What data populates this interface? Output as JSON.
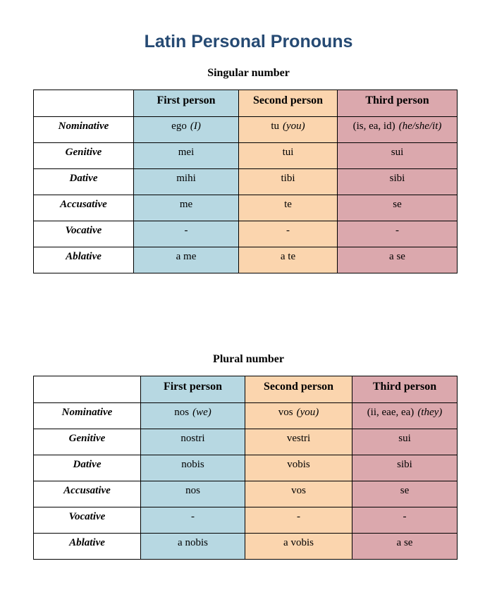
{
  "page": {
    "title": "Latin Personal Pronouns"
  },
  "colors": {
    "title_text": "#264A73",
    "first_person_bg": "#B7D8E2",
    "second_person_bg": "#FBD5AE",
    "third_person_bg": "#DBA8AD",
    "border": "#000000"
  },
  "tables": [
    {
      "caption": "Singular number",
      "headers": [
        "",
        "First person",
        "Second person",
        "Third person"
      ],
      "rows": [
        {
          "label": "Nominative",
          "cells": [
            {
              "text": "ego",
              "note": "(I)"
            },
            {
              "text": "tu",
              "note": "(you)"
            },
            {
              "text": "(is, ea, id)",
              "note": "(he/she/it)"
            }
          ]
        },
        {
          "label": "Genitive",
          "cells": [
            {
              "text": "mei",
              "note": ""
            },
            {
              "text": "tui",
              "note": ""
            },
            {
              "text": "sui",
              "note": ""
            }
          ]
        },
        {
          "label": "Dative",
          "cells": [
            {
              "text": "mihi",
              "note": ""
            },
            {
              "text": "tibi",
              "note": ""
            },
            {
              "text": "sibi",
              "note": ""
            }
          ]
        },
        {
          "label": "Accusative",
          "cells": [
            {
              "text": "me",
              "note": ""
            },
            {
              "text": "te",
              "note": ""
            },
            {
              "text": "se",
              "note": ""
            }
          ]
        },
        {
          "label": "Vocative",
          "cells": [
            {
              "text": "-",
              "note": ""
            },
            {
              "text": "-",
              "note": ""
            },
            {
              "text": "-",
              "note": ""
            }
          ]
        },
        {
          "label": "Ablative",
          "cells": [
            {
              "text": "a me",
              "note": ""
            },
            {
              "text": "a te",
              "note": ""
            },
            {
              "text": "a se",
              "note": ""
            }
          ]
        }
      ]
    },
    {
      "caption": "Plural number",
      "headers": [
        "",
        "First person",
        "Second person",
        "Third person"
      ],
      "rows": [
        {
          "label": "Nominative",
          "cells": [
            {
              "text": "nos",
              "note": "(we)"
            },
            {
              "text": "vos",
              "note": "(you)"
            },
            {
              "text": "(ii, eae, ea)",
              "note": "(they)"
            }
          ]
        },
        {
          "label": "Genitive",
          "cells": [
            {
              "text": "nostri",
              "note": ""
            },
            {
              "text": "vestri",
              "note": ""
            },
            {
              "text": "sui",
              "note": ""
            }
          ]
        },
        {
          "label": "Dative",
          "cells": [
            {
              "text": "nobis",
              "note": ""
            },
            {
              "text": "vobis",
              "note": ""
            },
            {
              "text": "sibi",
              "note": ""
            }
          ]
        },
        {
          "label": "Accusative",
          "cells": [
            {
              "text": "nos",
              "note": ""
            },
            {
              "text": "vos",
              "note": ""
            },
            {
              "text": "se",
              "note": ""
            }
          ]
        },
        {
          "label": "Vocative",
          "cells": [
            {
              "text": "-",
              "note": ""
            },
            {
              "text": "-",
              "note": ""
            },
            {
              "text": "-",
              "note": ""
            }
          ]
        },
        {
          "label": "Ablative",
          "cells": [
            {
              "text": "a nobis",
              "note": ""
            },
            {
              "text": "a vobis",
              "note": ""
            },
            {
              "text": "a se",
              "note": ""
            }
          ]
        }
      ]
    }
  ]
}
